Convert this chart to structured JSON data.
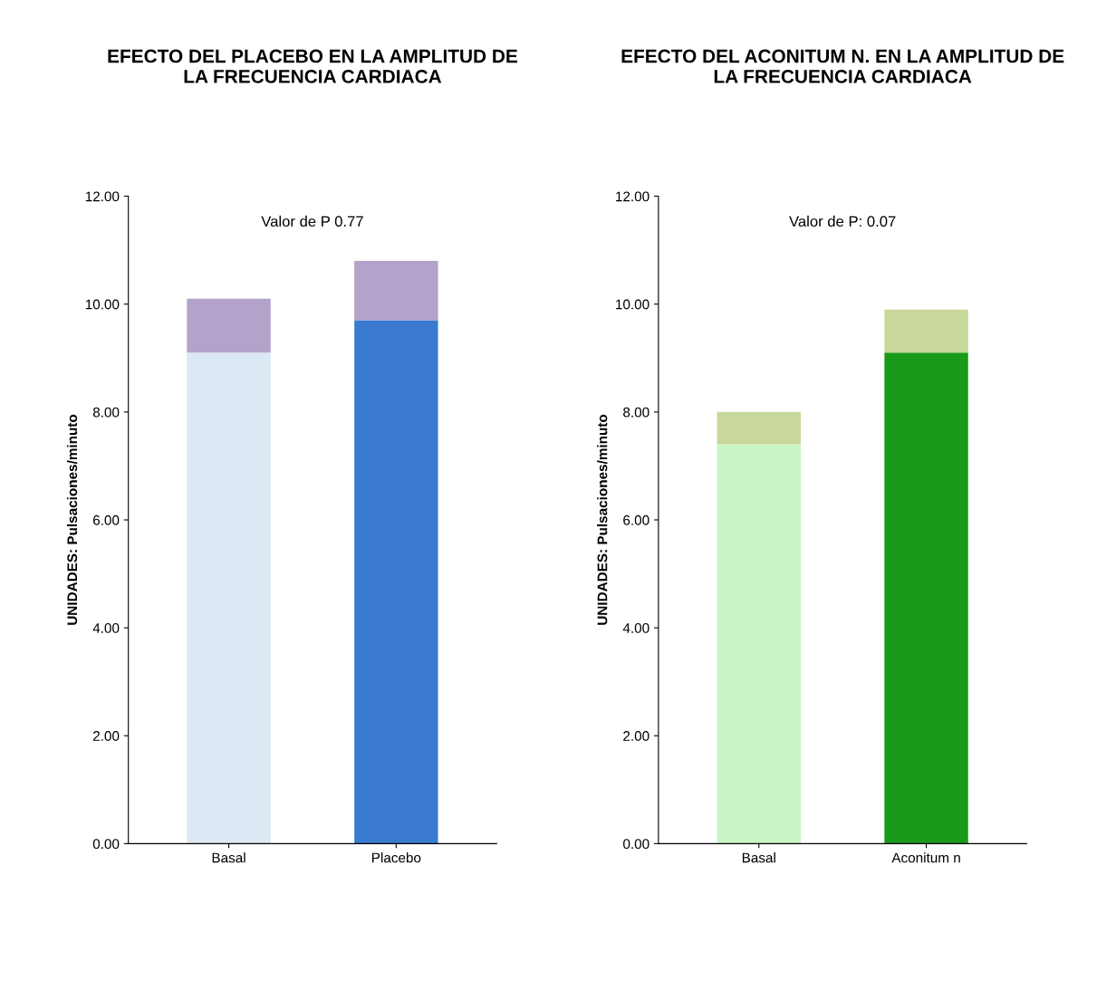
{
  "chart_data": [
    {
      "type": "bar",
      "stacked": true,
      "title": "EFECTO DEL PLACEBO EN LA AMPLITUD DE\nLA FRECUENCIA CARDIACA",
      "ylabel": "UNIDADES: Pulsaciones/minuto",
      "categories": [
        "Basal",
        "Placebo"
      ],
      "series": [
        {
          "colors": [
            "#dde8f5",
            "#3a7bd0"
          ],
          "values": [
            9.1,
            9.7
          ]
        },
        {
          "colors": [
            "#b3a2c9",
            "#b3a2c9"
          ],
          "values": [
            1.0,
            1.1
          ]
        }
      ],
      "ylim": [
        0,
        12
      ],
      "yticks": [
        {
          "value": 0,
          "label": "0.00"
        },
        {
          "value": 2,
          "label": "2.00"
        },
        {
          "value": 4,
          "label": "4.00"
        },
        {
          "value": 6,
          "label": "6.00"
        },
        {
          "value": 8,
          "label": "8.00"
        },
        {
          "value": 10,
          "label": "10.00"
        },
        {
          "value": 12,
          "label": "12.00"
        }
      ],
      "annotations": [
        "Valor de P 0.77"
      ]
    },
    {
      "type": "bar",
      "stacked": true,
      "title": "EFECTO DEL ACONITUM N. EN LA AMPLITUD DE\nLA FRECUENCIA CARDIACA",
      "ylabel": "UNIDADES: Pulsaciones/minuto",
      "categories": [
        "Basal",
        "Aconitum n"
      ],
      "series": [
        {
          "colors": [
            "#c8f5c8",
            "#1a9a1a"
          ],
          "values": [
            7.4,
            9.1
          ]
        },
        {
          "colors": [
            "#c8d89a",
            "#c8d89a"
          ],
          "values": [
            0.6,
            0.8
          ]
        }
      ],
      "ylim": [
        0,
        12
      ],
      "yticks": [
        {
          "value": 0,
          "label": "0.00"
        },
        {
          "value": 2,
          "label": "2.00"
        },
        {
          "value": 4,
          "label": "4.00"
        },
        {
          "value": 6,
          "label": "6.00"
        },
        {
          "value": 8,
          "label": "8.00"
        },
        {
          "value": 10,
          "label": "10.00"
        },
        {
          "value": 12,
          "label": "12.00"
        }
      ],
      "annotations": [
        "Valor de P: 0.07"
      ]
    }
  ]
}
